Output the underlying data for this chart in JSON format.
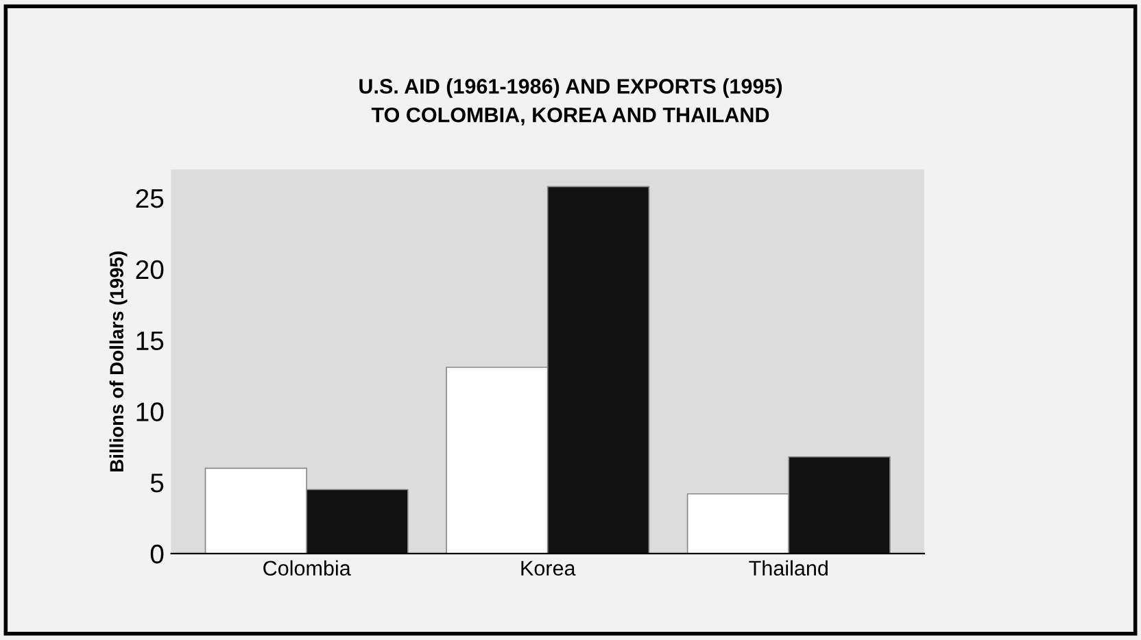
{
  "chart_data": {
    "type": "bar",
    "title": "U.S. AID (1961-1986) AND EXPORTS (1995)\nTO COLOMBIA, KOREA AND THAILAND",
    "ylabel": "Billions of Dollars (1995)",
    "categories": [
      "Colombia",
      "Korea",
      "Thailand"
    ],
    "series": [
      {
        "color": "#ffffff",
        "values": [
          6.0,
          13.1,
          4.2
        ]
      },
      {
        "color": "#111111",
        "values": [
          4.5,
          25.8,
          6.8
        ]
      }
    ],
    "ylim": [
      0,
      27
    ],
    "yticks": [
      0,
      5,
      10,
      15,
      20,
      25
    ],
    "grid": false,
    "legend": false
  }
}
